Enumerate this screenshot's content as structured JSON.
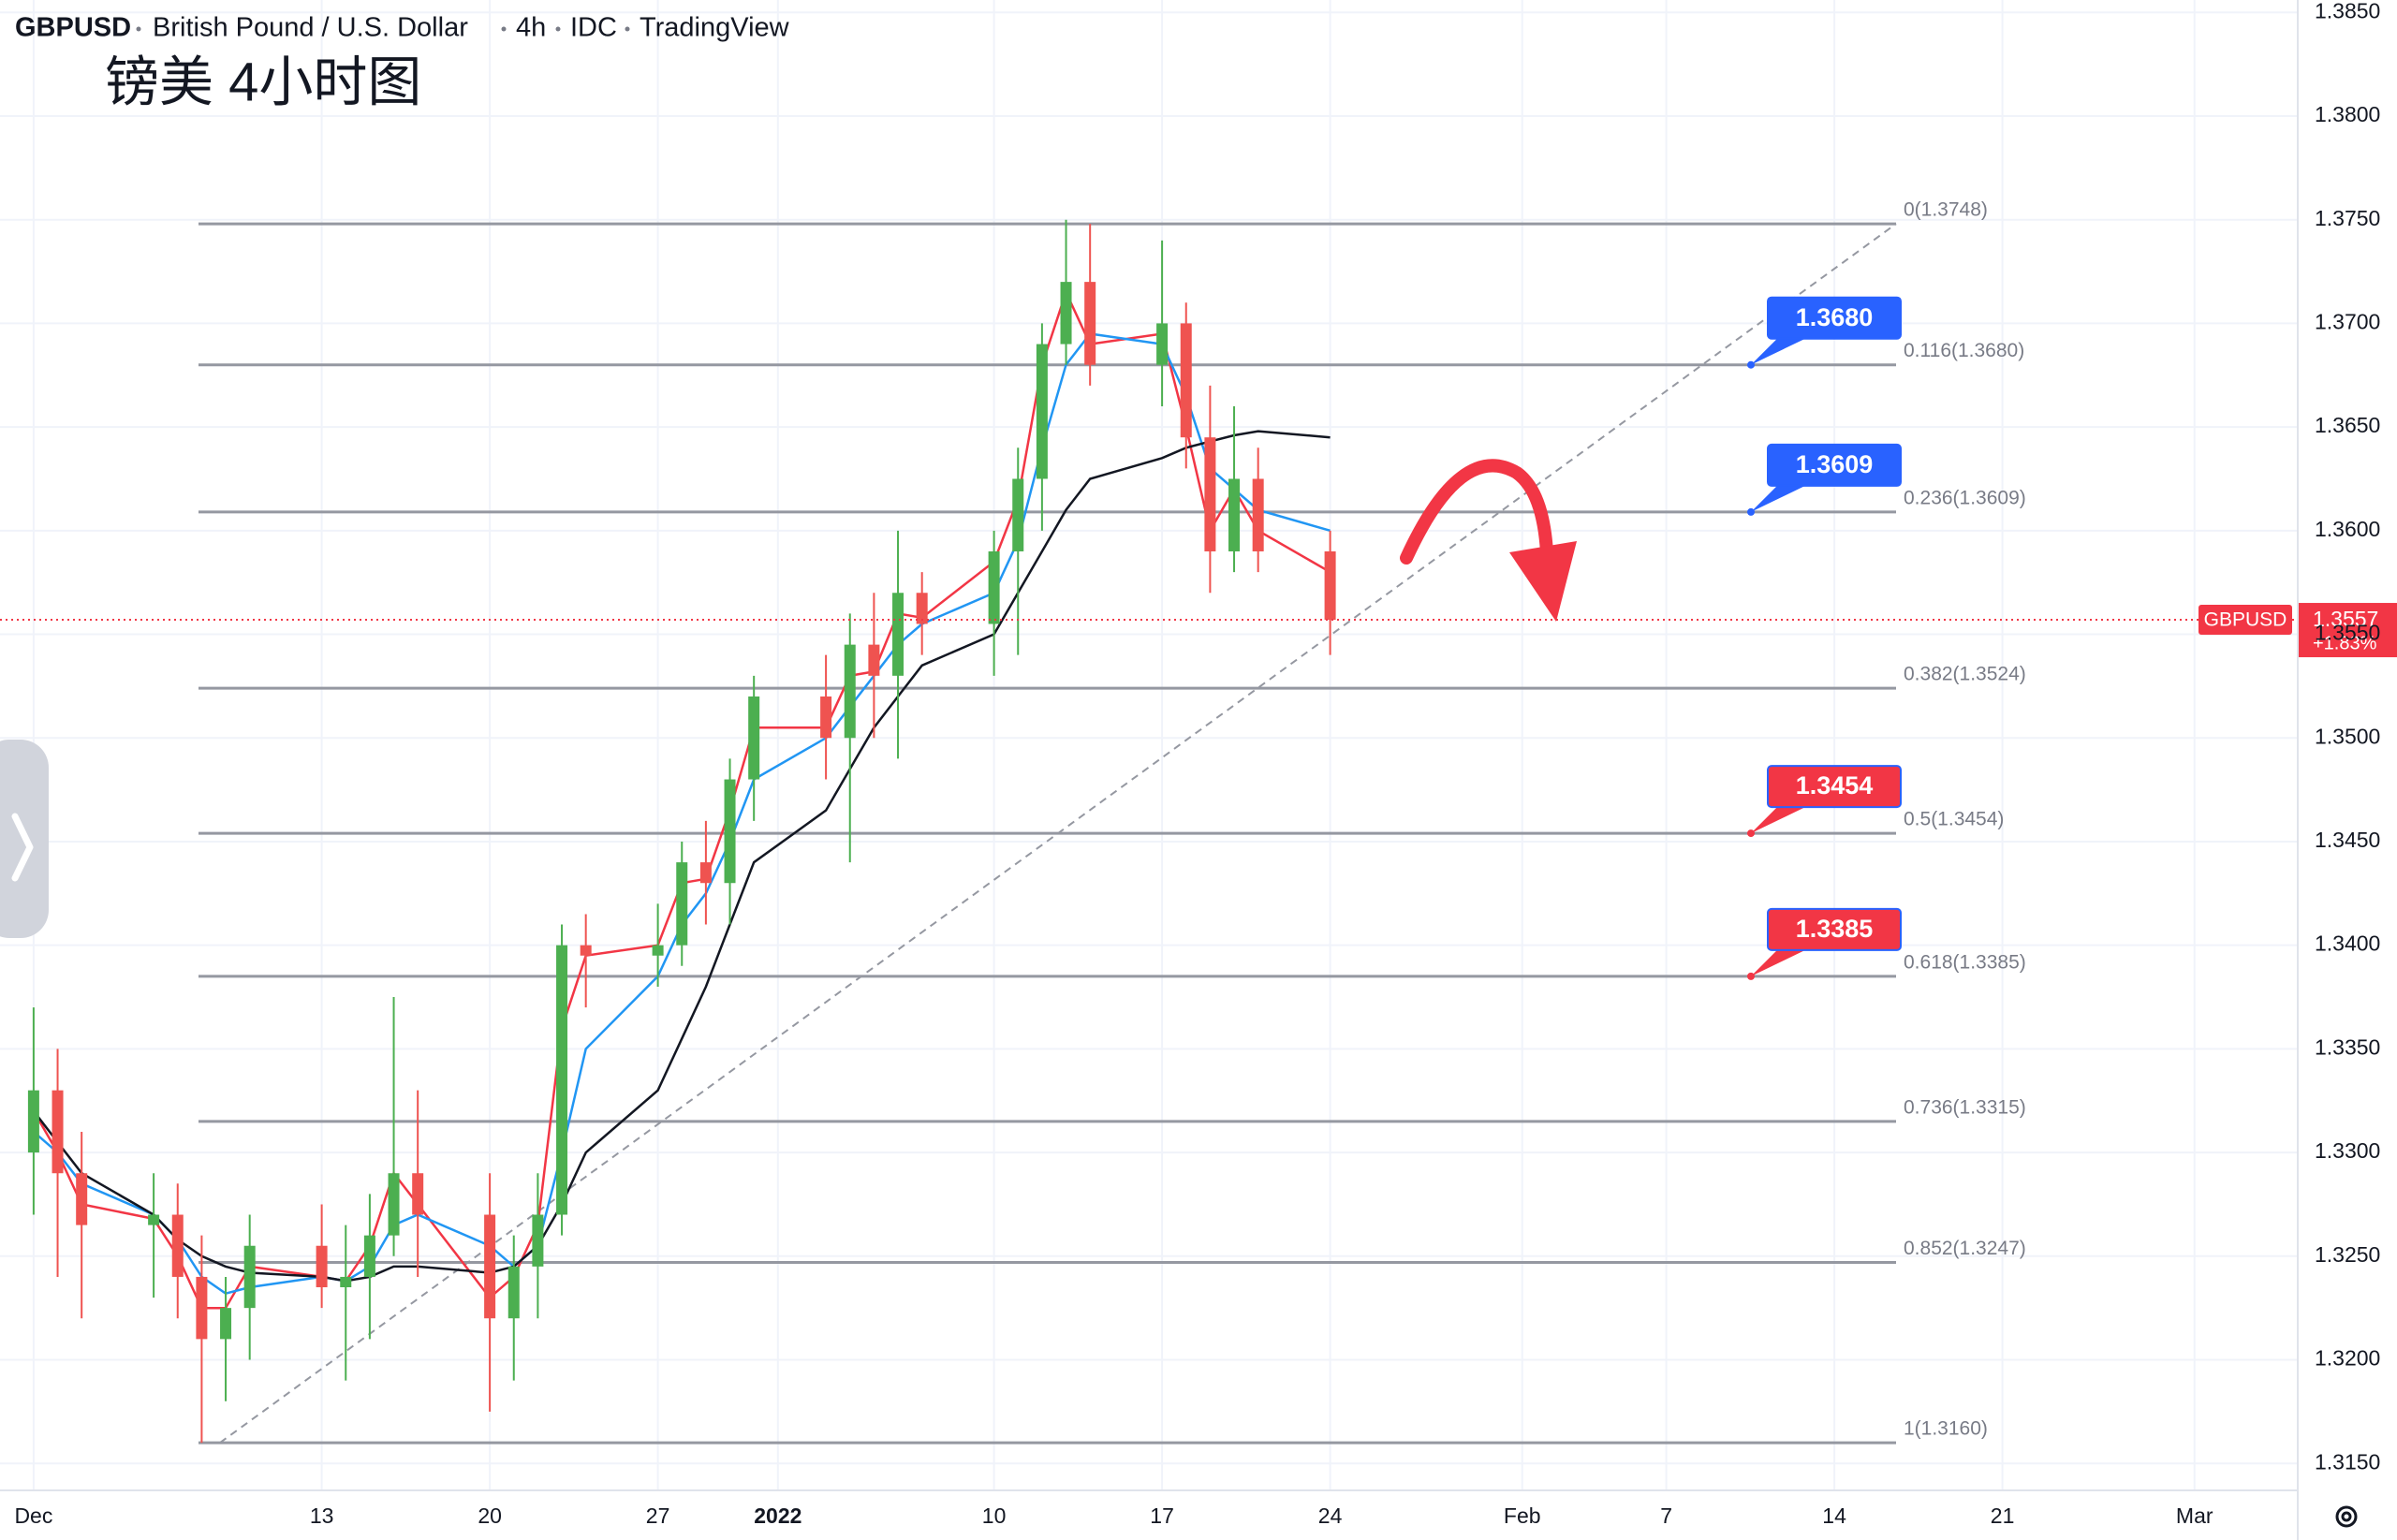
{
  "chart_data": {
    "type": "candlestick",
    "title": {
      "symbol": "GBPUSD",
      "name": "British Pound / U.S. Dollar",
      "interval": "4h",
      "source": "IDC",
      "platform": "TradingView"
    },
    "subtitle": "镑美 4小时图",
    "up_color": "#4caf50",
    "down_color": "#ef5350",
    "xlim": [
      -1.4,
      94.3
    ],
    "xticks": [
      {
        "value": 0,
        "label": "Dec"
      },
      {
        "value": 12,
        "label": "13"
      },
      {
        "value": 19,
        "label": "20"
      },
      {
        "value": 26,
        "label": "27"
      },
      {
        "value": 31,
        "label": "2022"
      },
      {
        "value": 40,
        "label": "10"
      },
      {
        "value": 47,
        "label": "17"
      },
      {
        "value": 54,
        "label": "24"
      },
      {
        "value": 62,
        "label": "Feb"
      },
      {
        "value": 68,
        "label": "7"
      },
      {
        "value": 75,
        "label": "14"
      },
      {
        "value": 82,
        "label": "21"
      },
      {
        "value": 90,
        "label": "Mar"
      }
    ],
    "ylim": [
      1.3137,
      1.3856
    ],
    "yticks": [
      {
        "value": 1.315,
        "label": "1.3150"
      },
      {
        "value": 1.32,
        "label": "1.3200"
      },
      {
        "value": 1.325,
        "label": "1.3250"
      },
      {
        "value": 1.33,
        "label": "1.3300"
      },
      {
        "value": 1.335,
        "label": "1.3350"
      },
      {
        "value": 1.34,
        "label": "1.3400"
      },
      {
        "value": 1.345,
        "label": "1.3450"
      },
      {
        "value": 1.35,
        "label": "1.3500"
      },
      {
        "value": 1.355,
        "label": "1.3550"
      },
      {
        "value": 1.36,
        "label": "1.3600"
      },
      {
        "value": 1.365,
        "label": "1.3650"
      },
      {
        "value": 1.37,
        "label": "1.3700"
      },
      {
        "value": 1.375,
        "label": "1.3750"
      },
      {
        "value": 1.38,
        "label": "1.3800"
      },
      {
        "value": 1.385,
        "label": "1.3850"
      }
    ],
    "grid": true,
    "x": [
      0,
      1,
      2,
      5,
      6,
      7,
      8,
      9,
      12,
      13,
      14,
      15,
      16,
      19,
      20,
      21,
      22,
      23,
      26,
      27,
      28,
      29,
      30,
      33,
      34,
      35,
      36,
      37,
      40,
      41,
      42,
      43,
      44,
      47,
      48,
      49,
      50,
      51,
      54
    ],
    "open": [
      1.33,
      1.333,
      1.329,
      1.3265,
      1.327,
      1.324,
      1.321,
      1.3225,
      1.3255,
      1.3235,
      1.324,
      1.326,
      1.329,
      1.327,
      1.322,
      1.3245,
      1.327,
      1.34,
      1.3395,
      1.34,
      1.344,
      1.343,
      1.348,
      1.352,
      1.35,
      1.3545,
      1.353,
      1.357,
      1.3555,
      1.359,
      1.3625,
      1.369,
      1.372,
      1.368,
      1.37,
      1.3645,
      1.359,
      1.3625,
      1.359
    ],
    "high": [
      1.337,
      1.335,
      1.331,
      1.329,
      1.3285,
      1.326,
      1.324,
      1.327,
      1.3275,
      1.3265,
      1.328,
      1.3375,
      1.333,
      1.329,
      1.326,
      1.329,
      1.341,
      1.3415,
      1.342,
      1.345,
      1.346,
      1.349,
      1.353,
      1.354,
      1.356,
      1.357,
      1.36,
      1.358,
      1.36,
      1.364,
      1.37,
      1.375,
      1.3748,
      1.374,
      1.371,
      1.367,
      1.366,
      1.364,
      1.36
    ],
    "low": [
      1.327,
      1.324,
      1.322,
      1.323,
      1.322,
      1.316,
      1.318,
      1.32,
      1.3225,
      1.319,
      1.321,
      1.325,
      1.324,
      1.3175,
      1.319,
      1.322,
      1.326,
      1.337,
      1.338,
      1.339,
      1.341,
      1.341,
      1.346,
      1.348,
      1.344,
      1.35,
      1.349,
      1.354,
      1.353,
      1.354,
      1.36,
      1.368,
      1.367,
      1.366,
      1.363,
      1.357,
      1.358,
      1.358,
      1.354
    ],
    "close": [
      1.333,
      1.329,
      1.3265,
      1.327,
      1.324,
      1.321,
      1.3225,
      1.3255,
      1.3235,
      1.324,
      1.326,
      1.329,
      1.327,
      1.322,
      1.3245,
      1.327,
      1.34,
      1.3395,
      1.34,
      1.344,
      1.343,
      1.348,
      1.352,
      1.35,
      1.3545,
      1.353,
      1.357,
      1.3555,
      1.359,
      1.3625,
      1.369,
      1.372,
      1.368,
      1.37,
      1.3645,
      1.359,
      1.3625,
      1.359,
      1.3557
    ],
    "lines": [
      {
        "color": "#f23645",
        "values": [
          1.332,
          1.33,
          1.3275,
          1.3268,
          1.325,
          1.3225,
          1.3225,
          1.3245,
          1.324,
          1.3238,
          1.3255,
          1.329,
          1.3275,
          1.323,
          1.324,
          1.3265,
          1.336,
          1.3395,
          1.34,
          1.343,
          1.3432,
          1.3465,
          1.3505,
          1.3505,
          1.353,
          1.3532,
          1.356,
          1.3558,
          1.3585,
          1.3615,
          1.368,
          1.3715,
          1.369,
          1.3695,
          1.365,
          1.36,
          1.362,
          1.36,
          1.358
        ]
      },
      {
        "color": "#2196f3",
        "values": [
          1.331,
          1.33,
          1.3285,
          1.327,
          1.3258,
          1.324,
          1.3232,
          1.3235,
          1.324,
          1.3238,
          1.3245,
          1.3265,
          1.327,
          1.3255,
          1.3245,
          1.3255,
          1.33,
          1.335,
          1.3385,
          1.341,
          1.3425,
          1.345,
          1.348,
          1.35,
          1.3515,
          1.353,
          1.3545,
          1.3555,
          1.357,
          1.3595,
          1.364,
          1.368,
          1.3695,
          1.369,
          1.3665,
          1.363,
          1.362,
          1.361,
          1.36
        ]
      },
      {
        "color": "#131722",
        "values": [
          1.332,
          1.3305,
          1.329,
          1.327,
          1.3258,
          1.325,
          1.3245,
          1.3242,
          1.324,
          1.3238,
          1.324,
          1.3245,
          1.3245,
          1.3242,
          1.3245,
          1.3255,
          1.3275,
          1.33,
          1.333,
          1.3355,
          1.338,
          1.341,
          1.344,
          1.3465,
          1.3485,
          1.3505,
          1.352,
          1.3535,
          1.355,
          1.357,
          1.359,
          1.361,
          1.3625,
          1.3635,
          1.364,
          1.3643,
          1.3646,
          1.3648,
          1.3645
        ]
      }
    ],
    "fib_levels": [
      {
        "value": 1.3748,
        "label": "0(1.3748)"
      },
      {
        "value": 1.368,
        "label": "0.116(1.3680)"
      },
      {
        "value": 1.3609,
        "label": "0.236(1.3609)"
      },
      {
        "value": 1.3524,
        "label": "0.382(1.3524)"
      },
      {
        "value": 1.3454,
        "label": "0.5(1.3454)"
      },
      {
        "value": 1.3385,
        "label": "0.618(1.3385)"
      },
      {
        "value": 1.3315,
        "label": "0.736(1.3315)"
      },
      {
        "value": 1.3247,
        "label": "0.852(1.3247)"
      },
      {
        "value": 1.316,
        "label": "1(1.3160)"
      }
    ],
    "callouts": [
      {
        "value": 1.368,
        "label": "1.3680",
        "color": "#2962ff"
      },
      {
        "value": 1.3609,
        "label": "1.3609",
        "color": "#2962ff"
      },
      {
        "value": 1.3454,
        "label": "1.3454",
        "color": "#f23645"
      },
      {
        "value": 1.3385,
        "label": "1.3385",
        "color": "#f23645"
      }
    ],
    "last_price": {
      "name": "GBPUSD",
      "value": 1.3557,
      "label": "1.3557",
      "change": "+1.83%",
      "color": "#f23645"
    }
  }
}
